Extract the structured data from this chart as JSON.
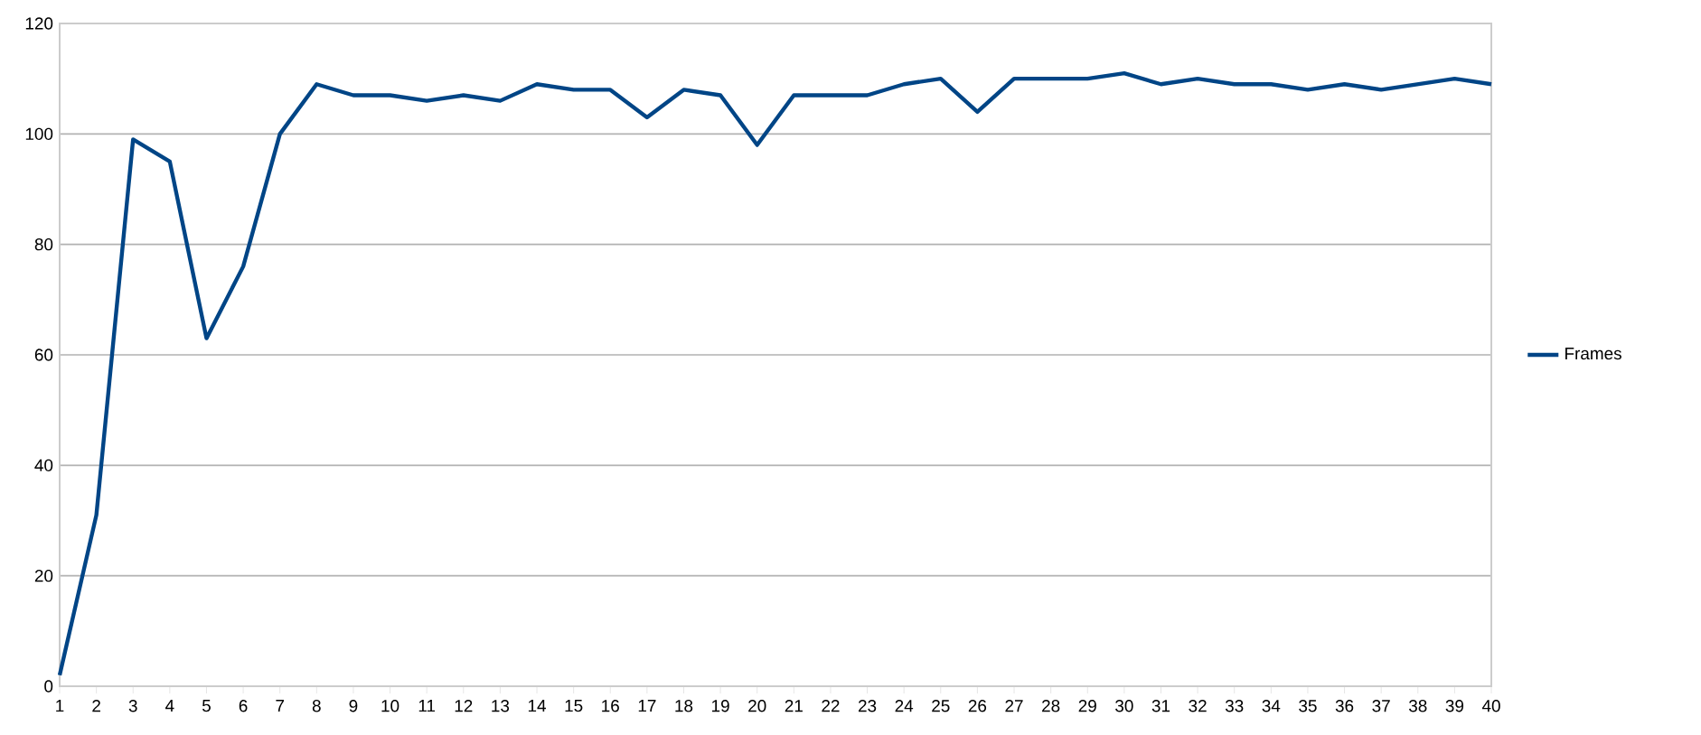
{
  "chart_data": {
    "type": "line",
    "categories": [
      "1",
      "2",
      "3",
      "4",
      "5",
      "6",
      "7",
      "8",
      "9",
      "10",
      "11",
      "12",
      "13",
      "14",
      "15",
      "16",
      "17",
      "18",
      "19",
      "20",
      "21",
      "22",
      "23",
      "24",
      "25",
      "26",
      "27",
      "28",
      "29",
      "30",
      "31",
      "32",
      "33",
      "34",
      "35",
      "36",
      "37",
      "38",
      "39",
      "40"
    ],
    "series": [
      {
        "name": "Frames",
        "color": "#004586",
        "values": [
          2,
          31,
          99,
          95,
          63,
          76,
          100,
          109,
          107,
          107,
          106,
          107,
          106,
          109,
          108,
          108,
          103,
          108,
          107,
          98,
          107,
          107,
          107,
          109,
          110,
          104,
          110,
          110,
          110,
          111,
          109,
          110,
          109,
          109,
          108,
          109,
          108,
          109,
          110,
          109
        ]
      }
    ],
    "ylim": [
      0,
      120
    ],
    "yticks": [
      0,
      20,
      40,
      60,
      80,
      100,
      120
    ],
    "grid": "y",
    "legend": "right",
    "marker": "none",
    "line_style": "solid"
  }
}
